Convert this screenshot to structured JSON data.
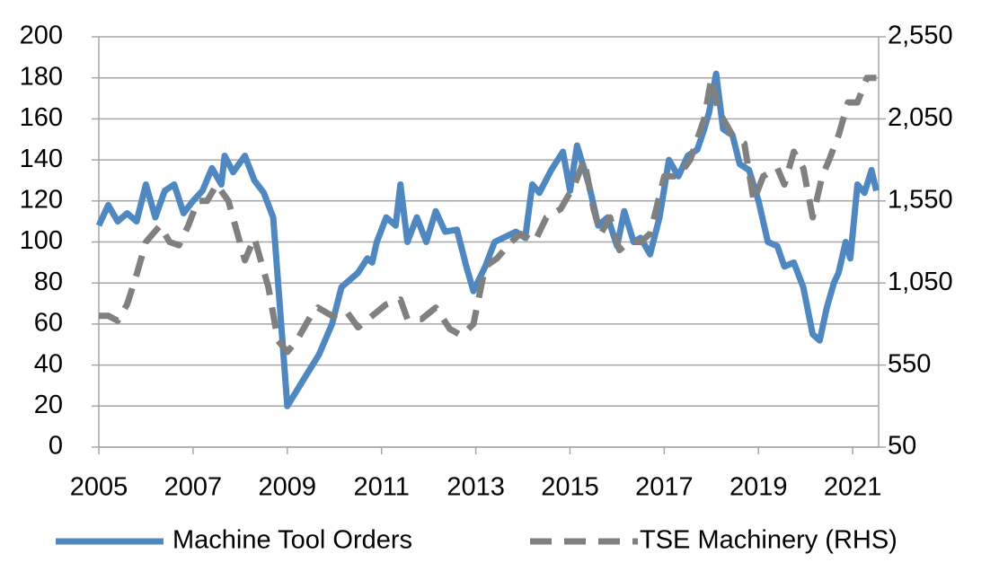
{
  "chart_data": {
    "type": "line",
    "xlim": [
      2005,
      2021.55
    ],
    "xticks": [
      2005,
      2007,
      2009,
      2011,
      2013,
      2015,
      2017,
      2019,
      2021
    ],
    "ylim": [
      0,
      200
    ],
    "yticks": [
      0,
      20,
      40,
      60,
      80,
      100,
      120,
      140,
      160,
      180,
      200
    ],
    "y2lim": [
      50,
      2550
    ],
    "y2ticks": [
      50,
      550,
      {
        "value": 1050,
        "label": "1,050"
      },
      {
        "value": 1550,
        "label": "1,550"
      },
      {
        "value": 2050,
        "label": "2,050"
      },
      {
        "value": 2550,
        "label": "2,550"
      }
    ],
    "grid": true,
    "legend": "bottom",
    "series": [
      {
        "name": "Machine Tool Orders",
        "color": "#4f87c0",
        "dashed": false,
        "x": [
          2005.0,
          2005.2,
          2005.4,
          2005.6,
          2005.8,
          2006.0,
          2006.2,
          2006.4,
          2006.6,
          2006.8,
          2007.0,
          2007.2,
          2007.4,
          2007.6,
          2007.67,
          2007.85,
          2008.1,
          2008.3,
          2008.5,
          2008.7,
          2009.0,
          2009.4,
          2009.67,
          2009.95,
          2010.15,
          2010.5,
          2010.7,
          2010.8,
          2010.9,
          2011.1,
          2011.3,
          2011.4,
          2011.55,
          2011.75,
          2011.95,
          2012.15,
          2012.35,
          2012.6,
          2012.8,
          2012.95,
          2013.2,
          2013.4,
          2013.85,
          2014.05,
          2014.2,
          2014.35,
          2014.6,
          2014.85,
          2015.0,
          2015.15,
          2015.4,
          2015.6,
          2015.8,
          2016.0,
          2016.15,
          2016.35,
          2016.5,
          2016.7,
          2016.9,
          2017.1,
          2017.3,
          2017.5,
          2017.7,
          2017.85,
          2017.95,
          2018.1,
          2018.25,
          2018.45,
          2018.6,
          2018.8,
          2019.0,
          2019.2,
          2019.4,
          2019.55,
          2019.75,
          2019.95,
          2020.15,
          2020.3,
          2020.45,
          2020.6,
          2020.7,
          2020.85,
          2020.95,
          2021.1,
          2021.25,
          2021.4,
          2021.5
        ],
        "values": [
          108,
          118,
          110,
          114,
          110,
          128,
          112,
          125,
          128,
          114,
          120,
          125,
          136,
          128,
          142,
          134,
          142,
          130,
          124,
          112,
          20,
          35,
          45,
          60,
          78,
          85,
          92,
          90,
          100,
          112,
          108,
          128,
          100,
          112,
          100,
          115,
          105,
          106,
          88,
          76,
          88,
          100,
          105,
          102,
          128,
          124,
          135,
          144,
          125,
          147,
          128,
          108,
          112,
          98,
          115,
          100,
          102,
          94,
          112,
          140,
          132,
          142,
          145,
          155,
          163,
          182,
          155,
          152,
          138,
          135,
          120,
          100,
          98,
          88,
          90,
          78,
          55,
          52,
          68,
          80,
          85,
          100,
          92,
          128,
          124,
          135,
          125
        ]
      },
      {
        "name": "TSE Machinery (RHS)",
        "color": "#808080",
        "dashed": true,
        "axis": "y2",
        "x": [
          2005.0,
          2005.2,
          2005.4,
          2005.6,
          2005.8,
          2006.0,
          2006.3,
          2006.5,
          2006.7,
          2006.9,
          2007.1,
          2007.3,
          2007.5,
          2007.75,
          2008.1,
          2008.3,
          2008.6,
          2008.8,
          2009.0,
          2009.2,
          2009.5,
          2009.65,
          2009.95,
          2010.25,
          2010.5,
          2010.8,
          2011.1,
          2011.4,
          2011.55,
          2011.85,
          2012.15,
          2012.45,
          2012.7,
          2012.95,
          2013.2,
          2013.45,
          2013.75,
          2013.95,
          2014.25,
          2014.5,
          2014.8,
          2015.1,
          2015.3,
          2015.5,
          2015.65,
          2015.85,
          2016.05,
          2016.25,
          2016.5,
          2016.7,
          2017.0,
          2017.3,
          2017.55,
          2017.85,
          2018.0,
          2018.15,
          2018.45,
          2018.7,
          2018.9,
          2019.1,
          2019.4,
          2019.55,
          2019.75,
          2019.95,
          2020.15,
          2020.35,
          2020.5,
          2020.7,
          2020.9,
          2021.1,
          2021.3,
          2021.5
        ],
        "values": [
          850,
          850,
          820,
          920,
          1100,
          1300,
          1400,
          1300,
          1280,
          1400,
          1550,
          1550,
          1650,
          1550,
          1188,
          1325,
          1024,
          700,
          630,
          700,
          850,
          900,
          850,
          880,
          780,
          850,
          920,
          950,
          830,
          830,
          900,
          770,
          730,
          800,
          1150,
          1200,
          1300,
          1350,
          1300,
          1450,
          1500,
          1650,
          1800,
          1500,
          1350,
          1450,
          1250,
          1300,
          1300,
          1350,
          1700,
          1700,
          1800,
          2050,
          2300,
          2100,
          1950,
          1900,
          1550,
          1700,
          1750,
          1650,
          1850,
          1750,
          1450,
          1700,
          1800,
          1950,
          2150,
          2150,
          2300,
          2300
        ]
      }
    ]
  }
}
